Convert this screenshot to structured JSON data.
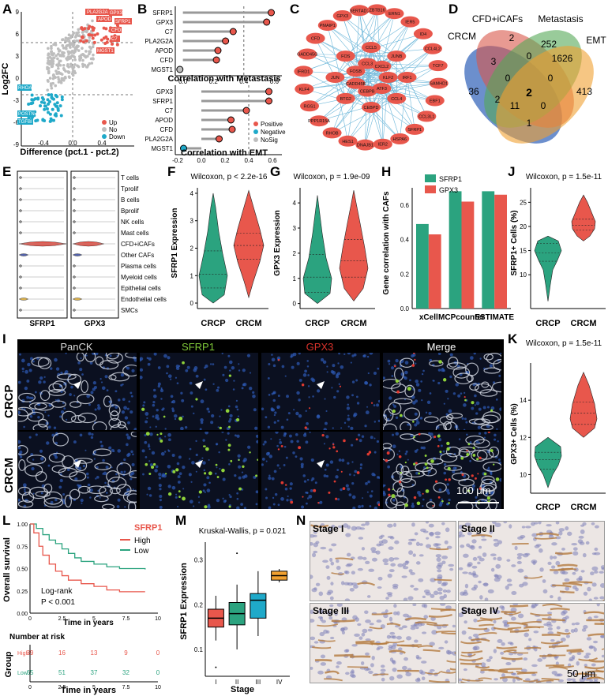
{
  "panels": {
    "A": "A",
    "B": "B",
    "C": "C",
    "D": "D",
    "E": "E",
    "F": "F",
    "G": "G",
    "H": "H",
    "I": "I",
    "J": "J",
    "K": "K",
    "L": "L",
    "M": "M",
    "N": "N"
  },
  "panelA": {
    "xlabel": "Difference (pct.1 - pct.2)",
    "ylabel": "Log2FC",
    "xticks": [
      "-0.4",
      "0.0",
      "0.4"
    ],
    "yticks": [
      "9",
      "6",
      "3",
      "0",
      "-3",
      "-6",
      "-9"
    ],
    "up_labels": [
      "PLA2G2A",
      "APOD",
      "GPX3",
      "SFRP1",
      "CFD",
      "C7",
      "MGST1"
    ],
    "down_labels": [
      "RHOA",
      "POSTN",
      "TGFBI"
    ],
    "legend": [
      "Up",
      "No",
      "Down"
    ],
    "colors": {
      "up": "#e8574c",
      "no": "#bdbdbd",
      "down": "#1fa9c9"
    }
  },
  "panelB": {
    "top": {
      "genes": [
        "SFRP1",
        "GPX3",
        "C7",
        "PLA2G2A",
        "APOD",
        "CFD",
        "MGST1"
      ],
      "values": [
        0.58,
        0.55,
        0.33,
        0.28,
        0.23,
        0.22,
        -0.02
      ],
      "xlabel": "Correlation with Metastasis",
      "xticks": [
        "0.0",
        "0.2",
        "0.4",
        "0.6"
      ]
    },
    "bottom": {
      "genes": [
        "GPX3",
        "SFRP1",
        "C7",
        "APOD",
        "CFD",
        "PLA2G2A",
        "MGST1"
      ],
      "values": [
        0.57,
        0.57,
        0.38,
        0.25,
        0.26,
        0.15,
        -0.15
      ],
      "xlabel": "Correlation with EMT",
      "xticks": [
        "-0.2",
        "0.0",
        "0.2",
        "0.4",
        "0.6"
      ],
      "legend": [
        "Positive",
        "Negative",
        "NoSig"
      ]
    }
  },
  "panelC": {
    "nodes": [
      "ERN1",
      "IER5",
      "ID4",
      "CCL4L2",
      "TCF7",
      "SAMHD1",
      "EBF1",
      "CCL3L1",
      "SFRP1",
      "HSPA6",
      "IER2",
      "DNAJB1",
      "HES1",
      "RHOB",
      "PPP1R15A",
      "RGS1",
      "KLF4",
      "IFRD1",
      "GADD45G",
      "CFD",
      "PMAIP1",
      "GPX3",
      "SERTAD1",
      "ZBTB16",
      "IRF1",
      "CCL4",
      "CEBPD",
      "BTG2",
      "JUN",
      "FOS",
      "CCL5",
      "JUNB",
      "KLF2",
      "ATF3",
      "CEBPB",
      "CADD45B",
      "FOSB",
      "CCL3",
      "CXCL2"
    ]
  },
  "panelD": {
    "sets": [
      "CRCM",
      "CFD+iCAFs",
      "Metastasis",
      "EMT"
    ],
    "numbers": [
      "36",
      "3",
      "2",
      "252",
      "1626",
      "413",
      "0",
      "0",
      "0",
      "2",
      "2",
      "11",
      "0",
      "1"
    ]
  },
  "panelE": {
    "celltypes": [
      "T cells",
      "Tprolif",
      "B cells",
      "Bprolif",
      "NK cells",
      "Mast cells",
      "CFD+iCAFs",
      "Other CAFs",
      "Plasma cells",
      "Myeloid cells",
      "Epithelial cells",
      "Endothelial cells",
      "SMCs"
    ],
    "genes": [
      "SFRP1",
      "GPX3"
    ]
  },
  "panelF": {
    "title": "Wilcoxon, p < 2.2e-16",
    "ylabel": "SFRP1 Expression",
    "groups": [
      "CRCP",
      "CRCM"
    ],
    "yticks": [
      "0",
      "1",
      "2",
      "3",
      "4"
    ]
  },
  "panelG": {
    "title": "Wilcoxon, p = 1.9e-09",
    "ylabel": "GPX3 Expression",
    "groups": [
      "CRCP",
      "CRCM"
    ],
    "yticks": [
      "0",
      "1",
      "2",
      "3",
      "4"
    ]
  },
  "panelH": {
    "chart_data": {
      "type": "bar",
      "categories": [
        "xCell",
        "MCPcounter",
        "ESTIMATE"
      ],
      "series": [
        {
          "name": "SFRP1",
          "values": [
            0.49,
            0.68,
            0.68
          ]
        },
        {
          "name": "GPX3",
          "values": [
            0.43,
            0.62,
            0.66
          ]
        }
      ],
      "ylabel": "Gene correlation with CAFs",
      "ylim": [
        0,
        0.7
      ],
      "yticks": [
        "0.0",
        "0.2",
        "0.4",
        "0.6"
      ],
      "colors": [
        "#2ba37f",
        "#e8574c"
      ]
    }
  },
  "panelJ": {
    "title": "Wilcoxon, p = 1.5e-11",
    "ylabel": "SFRP1+ Cells (%)",
    "groups": [
      "CRCP",
      "CRCM"
    ],
    "yticks": [
      "10",
      "15",
      "20",
      "25"
    ]
  },
  "panelK": {
    "title": "Wilcoxon, p = 1.5e-11",
    "ylabel": "GPX3+ Cells (%)",
    "groups": [
      "CRCP",
      "CRCM"
    ],
    "yticks": [
      "10",
      "12",
      "14"
    ]
  },
  "panelI": {
    "channels": [
      "PanCK",
      "SFRP1",
      "GPX3",
      "Merge"
    ],
    "rows": [
      "CRCP",
      "CRCM"
    ],
    "scale": "100 μm"
  },
  "panelL": {
    "ylabel": "Overall survival",
    "xlabel": "Time in years",
    "legend_title": "SFRP1",
    "legend": [
      "High",
      "Low"
    ],
    "stat": "Log-rank",
    "pval": "P < 0.001",
    "yticks": [
      "0.00",
      "0.25",
      "0.50",
      "0.75",
      "1.00"
    ],
    "xticks": [
      "0",
      "2.5",
      "5",
      "7.5",
      "10"
    ],
    "risk_title": "Number at risk",
    "risk_ylabel": "Group",
    "risk_high": [
      "39",
      "16",
      "13",
      "9",
      "0"
    ],
    "risk_low": [
      "65",
      "51",
      "37",
      "32",
      "0"
    ],
    "risk_rows": [
      "High",
      "Low"
    ]
  },
  "panelM": {
    "title": "Kruskal-Wallis, p = 0.021",
    "ylabel": "SFRP1 Expression",
    "xlabel": "Stage",
    "groups": [
      "I",
      "II",
      "III",
      "IV"
    ],
    "yticks": [
      "0.1",
      "0.2",
      "0.3"
    ]
  },
  "panelN": {
    "labels": [
      "Stage I",
      "Stage II",
      "Stage III",
      "Stage IV"
    ],
    "scale": "50 μm"
  }
}
